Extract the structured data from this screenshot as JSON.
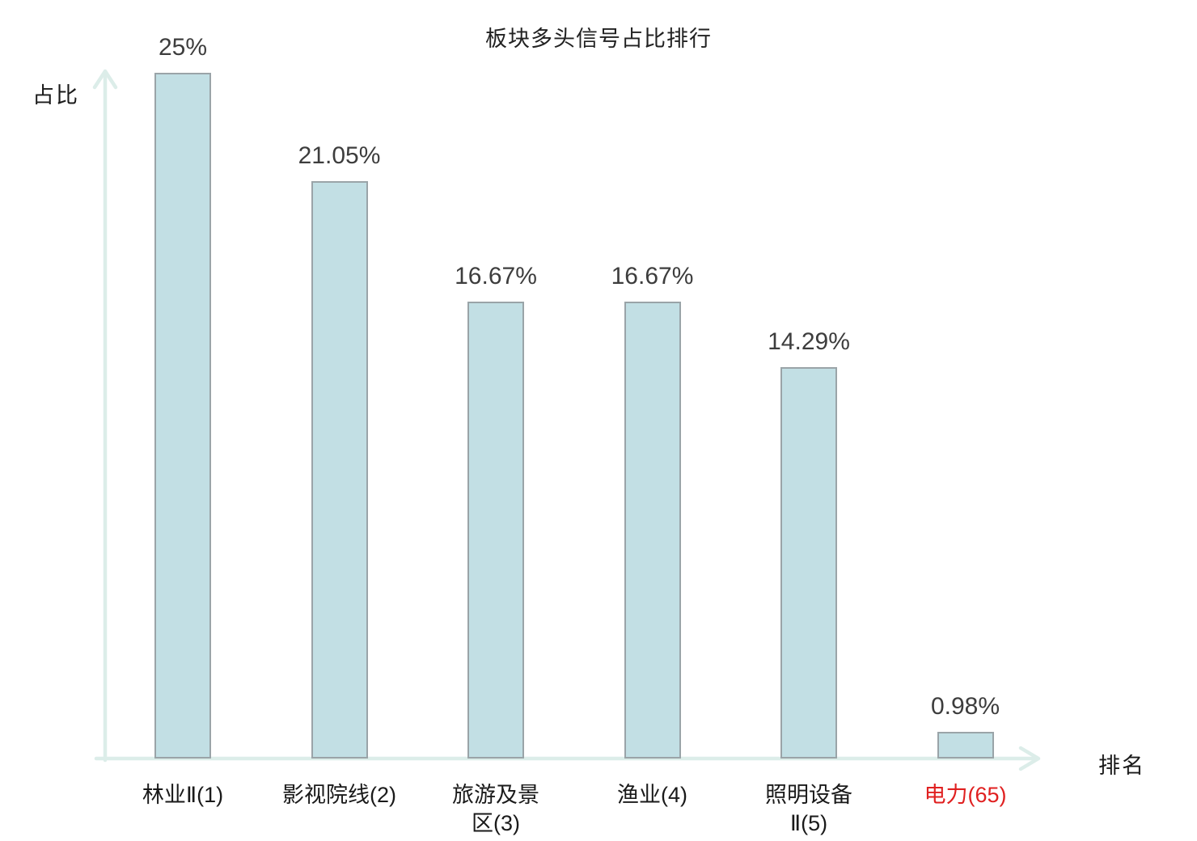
{
  "title": "板块多头信号占比排行",
  "axes": {
    "y_label": "占比",
    "x_label": "排名"
  },
  "chart_data": {
    "type": "bar",
    "title": "板块多头信号占比排行",
    "xlabel": "排名",
    "ylabel": "占比",
    "categories": [
      "林业Ⅱ(1)",
      "影视院线(2)",
      "旅游及景区(3)",
      "渔业(4)",
      "照明设备Ⅱ(5)",
      "电力(65)"
    ],
    "values": [
      25,
      21.05,
      16.67,
      16.67,
      14.29,
      0.98
    ],
    "ylim": [
      0,
      25
    ],
    "grid": false,
    "legend": "none",
    "bars": [
      {
        "category_lines": [
          "林业Ⅱ(1)"
        ],
        "value": 25,
        "value_label": "25%",
        "highlight": false
      },
      {
        "category_lines": [
          "影视院线(2)"
        ],
        "value": 21.05,
        "value_label": "21.05%",
        "highlight": false
      },
      {
        "category_lines": [
          "旅游及景",
          "区(3)"
        ],
        "value": 16.67,
        "value_label": "16.67%",
        "highlight": false
      },
      {
        "category_lines": [
          "渔业(4)"
        ],
        "value": 16.67,
        "value_label": "16.67%",
        "highlight": false
      },
      {
        "category_lines": [
          "照明设备",
          "Ⅱ(5)"
        ],
        "value": 14.29,
        "value_label": "14.29%",
        "highlight": false
      },
      {
        "category_lines": [
          "电力(65)"
        ],
        "value": 0.98,
        "value_label": "0.98%",
        "highlight": true
      }
    ],
    "colors": {
      "bar_fill": "#c2dfe4",
      "bar_border": "#9aa4a8",
      "axis": "#dcede9",
      "value_label": "#3d3d3d",
      "category_label": "#1a1a1a",
      "highlight_label": "#e02020"
    }
  }
}
